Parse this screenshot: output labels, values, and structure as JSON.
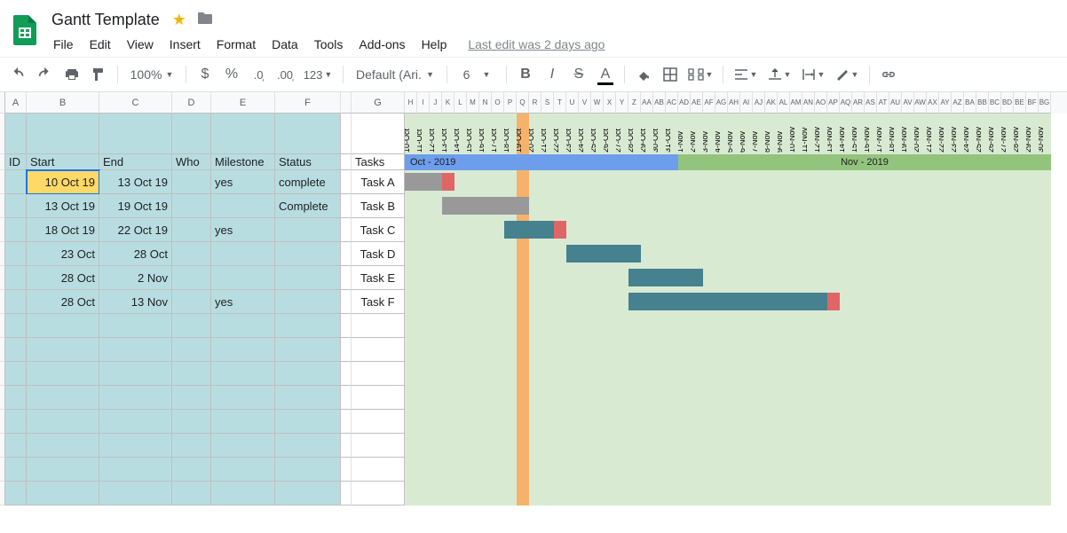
{
  "doc": {
    "title": "Gantt Template",
    "last_edit": "Last edit was 2 days ago"
  },
  "menu": [
    "File",
    "Edit",
    "View",
    "Insert",
    "Format",
    "Data",
    "Tools",
    "Add-ons",
    "Help"
  ],
  "toolbar": {
    "zoom": "100%",
    "font": "Default (Ari...",
    "size": "6"
  },
  "columns": {
    "letters": [
      "A",
      "B",
      "C",
      "D",
      "E",
      "F",
      "",
      "G"
    ],
    "widths": [
      24,
      82,
      82,
      44,
      72,
      74,
      12,
      60
    ],
    "gantt_col_width": 14,
    "gantt_letters": [
      "H",
      "I",
      "J",
      "K",
      "L",
      "M",
      "N",
      "O",
      "P",
      "Q",
      "R",
      "S",
      "T",
      "U",
      "V",
      "W",
      "X",
      "Y",
      "Z",
      "AA",
      "AB",
      "AC",
      "AD",
      "AE",
      "AF",
      "AG",
      "AH",
      "AI",
      "AJ",
      "AK",
      "AL",
      "AM",
      "AN",
      "AO",
      "AP",
      "AQ",
      "AR",
      "AS",
      "AT",
      "AU",
      "AV",
      "AW",
      "AX",
      "AY",
      "AZ",
      "BA",
      "BB",
      "BC",
      "BD",
      "BE",
      "BF",
      "BG"
    ]
  },
  "headers": {
    "id": "ID",
    "start": "Start",
    "end": "End",
    "who": "Who",
    "milestone": "Milestone",
    "status": "Status",
    "tasks": "Tasks"
  },
  "months": [
    {
      "label": "Oct - 2019",
      "span": 22,
      "color": "#6d9eeb"
    },
    {
      "label": "Nov - 2019",
      "span": 30,
      "color": "#93c47d"
    }
  ],
  "dates": [
    "10-Oct",
    "11-Oct",
    "12-Oct",
    "13-Oct",
    "14-Oct",
    "15-Oct",
    "16-Oct",
    "17-Oct",
    "18-Oct",
    "19-Oct",
    "20-Oct",
    "21-Oct",
    "22-Oct",
    "23-Oct",
    "24-Oct",
    "25-Oct",
    "26-Oct",
    "27-Oct",
    "28-Oct",
    "29-Oct",
    "30-Oct",
    "31-Oct",
    "1-Nov",
    "2-Nov",
    "3-Nov",
    "4-Nov",
    "5-Nov",
    "6-Nov",
    "7-Nov",
    "8-Nov",
    "9-Nov",
    "10-Nov",
    "11-Nov",
    "12-Nov",
    "13-Nov",
    "14-Nov",
    "15-Nov",
    "16-Nov",
    "17-Nov",
    "18-Nov",
    "19-Nov",
    "20-Nov",
    "21-Nov",
    "22-Nov",
    "23-Nov",
    "24-Nov",
    "25-Nov",
    "26-Nov",
    "27-Nov",
    "28-Nov",
    "29-Nov",
    "30-Nov"
  ],
  "current_day_index": 9,
  "tasks": [
    {
      "id": "",
      "start": "10 Oct 19",
      "end": "13 Oct 19",
      "who": "",
      "milestone": "yes",
      "status": "complete",
      "name": "Task A",
      "bar_start": 0,
      "bar_len": 4,
      "color": "#999999",
      "milestone_at": 3
    },
    {
      "id": "",
      "start": "13 Oct 19",
      "end": "19 Oct 19",
      "who": "",
      "milestone": "",
      "status": "Complete",
      "name": "Task B",
      "bar_start": 3,
      "bar_len": 7,
      "color": "#999999"
    },
    {
      "id": "",
      "start": "18 Oct 19",
      "end": "22 Oct 19",
      "who": "",
      "milestone": "yes",
      "status": "",
      "name": "Task C",
      "bar_start": 8,
      "bar_len": 5,
      "color": "#45818e",
      "milestone_at": 12
    },
    {
      "id": "",
      "start": "23 Oct",
      "end": "28 Oct",
      "who": "",
      "milestone": "",
      "status": "",
      "name": "Task D",
      "bar_start": 13,
      "bar_len": 6,
      "color": "#45818e"
    },
    {
      "id": "",
      "start": "28 Oct",
      "end": "2 Nov",
      "who": "",
      "milestone": "",
      "status": "",
      "name": "Task E",
      "bar_start": 18,
      "bar_len": 6,
      "color": "#45818e"
    },
    {
      "id": "",
      "start": "28 Oct",
      "end": "13 Nov",
      "who": "",
      "milestone": "yes",
      "status": "",
      "name": "Task F",
      "bar_start": 18,
      "bar_len": 17,
      "color": "#45818e",
      "milestone_at": 34
    }
  ],
  "colors": {
    "milestone": "#e06666",
    "data_bg": "#b8dde0",
    "gantt_bg": "#d9ead3",
    "selected": "#ffd966",
    "current": "#f6b26b"
  },
  "empty_rows": 8
}
